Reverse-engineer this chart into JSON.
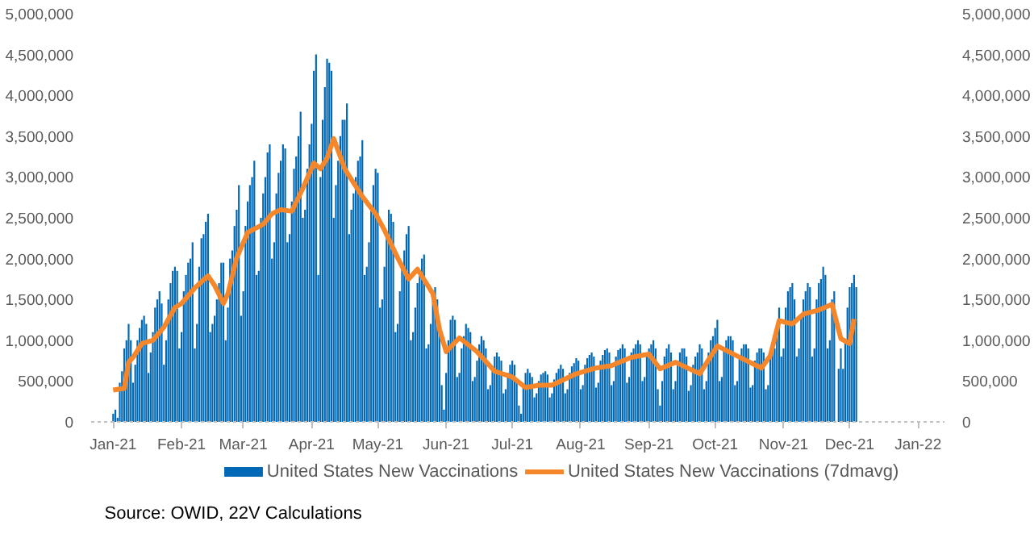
{
  "chart_data": {
    "type": "bar",
    "x": [
      "2021-01-01",
      "2021-01-02",
      "2021-01-03",
      "2021-01-04",
      "2021-01-05",
      "2021-01-06",
      "2021-01-07",
      "2021-01-08",
      "2021-01-09",
      "2021-01-10",
      "2021-01-11",
      "2021-01-12",
      "2021-01-13",
      "2021-01-14",
      "2021-01-15",
      "2021-01-16",
      "2021-01-17",
      "2021-01-18",
      "2021-01-19",
      "2021-01-20",
      "2021-01-21",
      "2021-01-22",
      "2021-01-23",
      "2021-01-24",
      "2021-01-25",
      "2021-01-26",
      "2021-01-27",
      "2021-01-28",
      "2021-01-29",
      "2021-01-30",
      "2021-01-31",
      "2021-02-01",
      "2021-02-02",
      "2021-02-03",
      "2021-02-04",
      "2021-02-05",
      "2021-02-06",
      "2021-02-07",
      "2021-02-08",
      "2021-02-09",
      "2021-02-10",
      "2021-02-11",
      "2021-02-12",
      "2021-02-13",
      "2021-02-14",
      "2021-02-15",
      "2021-02-16",
      "2021-02-17",
      "2021-02-18",
      "2021-02-19",
      "2021-02-20",
      "2021-02-21",
      "2021-02-22",
      "2021-02-23",
      "2021-02-24",
      "2021-02-25",
      "2021-02-26",
      "2021-02-27",
      "2021-02-28",
      "2021-03-01",
      "2021-03-02",
      "2021-03-03",
      "2021-03-04",
      "2021-03-05",
      "2021-03-06",
      "2021-03-07",
      "2021-03-08",
      "2021-03-09",
      "2021-03-10",
      "2021-03-11",
      "2021-03-12",
      "2021-03-13",
      "2021-03-14",
      "2021-03-15",
      "2021-03-16",
      "2021-03-17",
      "2021-03-18",
      "2021-03-19",
      "2021-03-20",
      "2021-03-21",
      "2021-03-22",
      "2021-03-23",
      "2021-03-24",
      "2021-03-25",
      "2021-03-26",
      "2021-03-27",
      "2021-03-28",
      "2021-03-29",
      "2021-03-30",
      "2021-03-31",
      "2021-04-01",
      "2021-04-02",
      "2021-04-03",
      "2021-04-04",
      "2021-04-05",
      "2021-04-06",
      "2021-04-07",
      "2021-04-08",
      "2021-04-09",
      "2021-04-10",
      "2021-04-11",
      "2021-04-12",
      "2021-04-13",
      "2021-04-14",
      "2021-04-15",
      "2021-04-16",
      "2021-04-17",
      "2021-04-18",
      "2021-04-19",
      "2021-04-20",
      "2021-04-21",
      "2021-04-22",
      "2021-04-23",
      "2021-04-24",
      "2021-04-25",
      "2021-04-26",
      "2021-04-27",
      "2021-04-28",
      "2021-04-29",
      "2021-04-30",
      "2021-05-01",
      "2021-05-02",
      "2021-05-03",
      "2021-05-04",
      "2021-05-05",
      "2021-05-06",
      "2021-05-07",
      "2021-05-08",
      "2021-05-09",
      "2021-05-10",
      "2021-05-11",
      "2021-05-12",
      "2021-05-13",
      "2021-05-14",
      "2021-05-15",
      "2021-05-16",
      "2021-05-17",
      "2021-05-18",
      "2021-05-19",
      "2021-05-20",
      "2021-05-21",
      "2021-05-22",
      "2021-05-23",
      "2021-05-24",
      "2021-05-25",
      "2021-05-26",
      "2021-05-27",
      "2021-05-28",
      "2021-05-29",
      "2021-05-30",
      "2021-05-31",
      "2021-06-01",
      "2021-06-02",
      "2021-06-03",
      "2021-06-04",
      "2021-06-05",
      "2021-06-06",
      "2021-06-07",
      "2021-06-08",
      "2021-06-09",
      "2021-06-10",
      "2021-06-11",
      "2021-06-12",
      "2021-06-13",
      "2021-06-14",
      "2021-06-15",
      "2021-06-16",
      "2021-06-17",
      "2021-06-18",
      "2021-06-19",
      "2021-06-20",
      "2021-06-21",
      "2021-06-22",
      "2021-06-23",
      "2021-06-24",
      "2021-06-25",
      "2021-06-26",
      "2021-06-27",
      "2021-06-28",
      "2021-06-29",
      "2021-06-30",
      "2021-07-01",
      "2021-07-02",
      "2021-07-03",
      "2021-07-04",
      "2021-07-05",
      "2021-07-06",
      "2021-07-07",
      "2021-07-08",
      "2021-07-09",
      "2021-07-10",
      "2021-07-11",
      "2021-07-12",
      "2021-07-13",
      "2021-07-14",
      "2021-07-15",
      "2021-07-16",
      "2021-07-17",
      "2021-07-18",
      "2021-07-19",
      "2021-07-20",
      "2021-07-21",
      "2021-07-22",
      "2021-07-23",
      "2021-07-24",
      "2021-07-25",
      "2021-07-26",
      "2021-07-27",
      "2021-07-28",
      "2021-07-29",
      "2021-07-30",
      "2021-07-31",
      "2021-08-01",
      "2021-08-02",
      "2021-08-03",
      "2021-08-04",
      "2021-08-05",
      "2021-08-06",
      "2021-08-07",
      "2021-08-08",
      "2021-08-09",
      "2021-08-10",
      "2021-08-11",
      "2021-08-12",
      "2021-08-13",
      "2021-08-14",
      "2021-08-15",
      "2021-08-16",
      "2021-08-17",
      "2021-08-18",
      "2021-08-19",
      "2021-08-20",
      "2021-08-21",
      "2021-08-22",
      "2021-08-23",
      "2021-08-24",
      "2021-08-25",
      "2021-08-26",
      "2021-08-27",
      "2021-08-28",
      "2021-08-29",
      "2021-08-30",
      "2021-08-31",
      "2021-09-01",
      "2021-09-02",
      "2021-09-03",
      "2021-09-04",
      "2021-09-05",
      "2021-09-06",
      "2021-09-07",
      "2021-09-08",
      "2021-09-09",
      "2021-09-10",
      "2021-09-11",
      "2021-09-12",
      "2021-09-13",
      "2021-09-14",
      "2021-09-15",
      "2021-09-16",
      "2021-09-17",
      "2021-09-18",
      "2021-09-19",
      "2021-09-20",
      "2021-09-21",
      "2021-09-22",
      "2021-09-23",
      "2021-09-24",
      "2021-09-25",
      "2021-09-26",
      "2021-09-27",
      "2021-09-28",
      "2021-09-29",
      "2021-09-30",
      "2021-10-01",
      "2021-10-02",
      "2021-10-03",
      "2021-10-04",
      "2021-10-05",
      "2021-10-06",
      "2021-10-07",
      "2021-10-08",
      "2021-10-09",
      "2021-10-10",
      "2021-10-11",
      "2021-10-12",
      "2021-10-13",
      "2021-10-14",
      "2021-10-15",
      "2021-10-16",
      "2021-10-17",
      "2021-10-18",
      "2021-10-19",
      "2021-10-20",
      "2021-10-21",
      "2021-10-22",
      "2021-10-23",
      "2021-10-24",
      "2021-10-25",
      "2021-10-26",
      "2021-10-27",
      "2021-10-28",
      "2021-10-29",
      "2021-10-30",
      "2021-10-31",
      "2021-11-01",
      "2021-11-02",
      "2021-11-03",
      "2021-11-04",
      "2021-11-05",
      "2021-11-06",
      "2021-11-07",
      "2021-11-08",
      "2021-11-09",
      "2021-11-10",
      "2021-11-11",
      "2021-11-12",
      "2021-11-13",
      "2021-11-14",
      "2021-11-15",
      "2021-11-16",
      "2021-11-17",
      "2021-11-18",
      "2021-11-19",
      "2021-11-20",
      "2021-11-21",
      "2021-11-22",
      "2021-11-23",
      "2021-11-24",
      "2021-11-25",
      "2021-11-26",
      "2021-11-27",
      "2021-11-28",
      "2021-11-29",
      "2021-11-30",
      "2021-12-01",
      "2021-12-02",
      "2021-12-03",
      "2021-12-04"
    ],
    "xlim": [
      "2020-12-22",
      "2022-01-13"
    ],
    "xticks": [
      {
        "value": "2021-01-01",
        "label": "Jan-21"
      },
      {
        "value": "2021-02-01",
        "label": "Feb-21"
      },
      {
        "value": "2021-03-01",
        "label": "Mar-21"
      },
      {
        "value": "2021-04-01",
        "label": "Apr-21"
      },
      {
        "value": "2021-05-01",
        "label": "May-21"
      },
      {
        "value": "2021-06-01",
        "label": "Jun-21"
      },
      {
        "value": "2021-07-01",
        "label": "Jul-21"
      },
      {
        "value": "2021-08-01",
        "label": "Aug-21"
      },
      {
        "value": "2021-09-01",
        "label": "Sep-21"
      },
      {
        "value": "2021-10-01",
        "label": "Oct-21"
      },
      {
        "value": "2021-11-01",
        "label": "Nov-21"
      },
      {
        "value": "2021-12-01",
        "label": "Dec-21"
      },
      {
        "value": "2022-01-01",
        "label": "Jan-22"
      }
    ],
    "ylim": [
      0,
      5000000
    ],
    "yticks": [
      0,
      {
        "value": 500000,
        "label": "500,000"
      },
      {
        "value": 1000000,
        "label": "1,000,000"
      },
      {
        "value": 1500000,
        "label": "1,500,000"
      },
      {
        "value": 2000000,
        "label": "2,000,000"
      },
      {
        "value": 2500000,
        "label": "2,500,000"
      },
      {
        "value": 3000000,
        "label": "3,000,000"
      },
      {
        "value": 3500000,
        "label": "3,500,000"
      },
      {
        "value": 4000000,
        "label": "4,000,000"
      },
      {
        "value": 4500000,
        "label": "4,500,000"
      },
      {
        "value": 5000000,
        "label": "5,000,000"
      }
    ],
    "y2lim": [
      0,
      5000000
    ],
    "y2ticks": [
      0,
      {
        "value": 500000,
        "label": "500,000"
      },
      {
        "value": 1000000,
        "label": "1,000,000"
      },
      {
        "value": 1500000,
        "label": "1,500,000"
      },
      {
        "value": 2000000,
        "label": "2,000,000"
      },
      {
        "value": 2500000,
        "label": "2,500,000"
      },
      {
        "value": 3000000,
        "label": "3,000,000"
      },
      {
        "value": 3500000,
        "label": "3,500,000"
      },
      {
        "value": 4000000,
        "label": "4,000,000"
      },
      {
        "value": 4500000,
        "label": "4,500,000"
      },
      {
        "value": 5000000,
        "label": "5,000,000"
      }
    ],
    "grid": false,
    "legend": "bottom",
    "annotations": [
      "Source:  OWID, 22V Calculations"
    ],
    "series": [
      {
        "name": "United States New Vaccinations",
        "color": "#0068b4",
        "values": [
          100000,
          150000,
          50000,
          480000,
          620000,
          900000,
          1000000,
          1200000,
          1000000,
          480000,
          700000,
          1000000,
          1150000,
          1250000,
          1300000,
          1200000,
          600000,
          850000,
          1100000,
          1400000,
          1500000,
          1600000,
          1450000,
          700000,
          1000000,
          1500000,
          1700000,
          1850000,
          1900000,
          1850000,
          900000,
          1100000,
          1600000,
          1800000,
          1950000,
          2000000,
          2200000,
          900000,
          1200000,
          1900000,
          2250000,
          2300000,
          2450000,
          2550000,
          1100000,
          1200000,
          1300000,
          1500000,
          1700000,
          1950000,
          1950000,
          1000000,
          1400000,
          2000000,
          2100000,
          2400000,
          2600000,
          2900000,
          1300000,
          1600000,
          2400000,
          2700000,
          2900000,
          3000000,
          3200000,
          1800000,
          1850000,
          2500000,
          2800000,
          3000000,
          3300000,
          3400000,
          2000000,
          2200000,
          2800000,
          3050000,
          3200000,
          3400000,
          3350000,
          2200000,
          2300000,
          2700000,
          3100000,
          3250000,
          3500000,
          3800000,
          2500000,
          2600000,
          3100000,
          3400000,
          3650000,
          4300000,
          4500000,
          1800000,
          3000000,
          3700000,
          4100000,
          4450000,
          4400000,
          4300000,
          2500000,
          2900000,
          3200000,
          3500000,
          3700000,
          3700000,
          3900000,
          2300000,
          2600000,
          2800000,
          3000000,
          3200000,
          3250000,
          3450000,
          1800000,
          1900000,
          2200000,
          2600000,
          2900000,
          3100000,
          3050000,
          1400000,
          1500000,
          1900000,
          2300000,
          2600000,
          2550000,
          2450000,
          1100000,
          1200000,
          1600000,
          1900000,
          2100000,
          2300000,
          2400000,
          1000000,
          1100000,
          1400000,
          1700000,
          1800000,
          2000000,
          2050000,
          900000,
          950000,
          1200000,
          1550000,
          1650000,
          1500000,
          1200000,
          450000,
          150000,
          600000,
          1000000,
          1250000,
          1300000,
          1250000,
          550000,
          600000,
          900000,
          1050000,
          1200000,
          1150000,
          1100000,
          500000,
          550000,
          750000,
          950000,
          1050000,
          1000000,
          900000,
          400000,
          450000,
          650000,
          800000,
          850000,
          800000,
          750000,
          350000,
          400000,
          600000,
          700000,
          750000,
          700000,
          500000,
          200000,
          100000,
          450000,
          600000,
          650000,
          600000,
          550000,
          300000,
          350000,
          500000,
          580000,
          600000,
          620000,
          580000,
          300000,
          350000,
          520000,
          600000,
          650000,
          700000,
          650000,
          350000,
          400000,
          600000,
          680000,
          720000,
          780000,
          750000,
          400000,
          450000,
          700000,
          780000,
          820000,
          850000,
          800000,
          420000,
          480000,
          750000,
          820000,
          880000,
          900000,
          850000,
          450000,
          500000,
          800000,
          880000,
          900000,
          950000,
          900000,
          480000,
          550000,
          850000,
          900000,
          950000,
          1000000,
          950000,
          500000,
          550000,
          850000,
          900000,
          950000,
          1000000,
          900000,
          400000,
          200000,
          500000,
          800000,
          900000,
          950000,
          850000,
          400000,
          500000,
          750000,
          850000,
          900000,
          900000,
          800000,
          380000,
          450000,
          700000,
          800000,
          850000,
          950000,
          900000,
          400000,
          500000,
          850000,
          1000000,
          1050000,
          1150000,
          1250000,
          500000,
          550000,
          900000,
          1000000,
          1050000,
          1050000,
          1000000,
          450000,
          500000,
          800000,
          900000,
          950000,
          950000,
          900000,
          420000,
          450000,
          750000,
          850000,
          900000,
          900000,
          850000,
          400000,
          450000,
          800000,
          850000,
          900000,
          1100000,
          1400000,
          800000,
          900000,
          1400000,
          1600000,
          1650000,
          1700000,
          1500000,
          800000,
          900000,
          1300000,
          1500000,
          1600000,
          1700000,
          1650000,
          800000,
          900000,
          1500000,
          1700000,
          1750000,
          1900000,
          1800000,
          900000,
          1000000,
          1500000,
          1600000,
          0,
          650000,
          900000,
          650000,
          1000000,
          1400000,
          1650000,
          1700000,
          1800000,
          1650000
        ]
      },
      {
        "name": "United States New Vaccinations (7dmavg)",
        "type": "line",
        "color": "#f5862a",
        "x": [
          "2021-01-01",
          "2021-01-06",
          "2021-01-08",
          "2021-01-10",
          "2021-01-14",
          "2021-01-19",
          "2021-01-24",
          "2021-01-29",
          "2021-02-01",
          "2021-02-07",
          "2021-02-13",
          "2021-02-16",
          "2021-02-20",
          "2021-02-22",
          "2021-02-26",
          "2021-03-03",
          "2021-03-10",
          "2021-03-14",
          "2021-03-18",
          "2021-03-23",
          "2021-03-28",
          "2021-04-02",
          "2021-04-05",
          "2021-04-08",
          "2021-04-11",
          "2021-04-16",
          "2021-04-24",
          "2021-04-30",
          "2021-05-04",
          "2021-05-10",
          "2021-05-15",
          "2021-05-19",
          "2021-05-26",
          "2021-05-29",
          "2021-06-01",
          "2021-06-07",
          "2021-06-15",
          "2021-06-23",
          "2021-07-01",
          "2021-07-07",
          "2021-07-13",
          "2021-07-19",
          "2021-07-30",
          "2021-08-08",
          "2021-08-15",
          "2021-08-24",
          "2021-09-01",
          "2021-09-06",
          "2021-09-13",
          "2021-09-24",
          "2021-10-02",
          "2021-10-13",
          "2021-10-22",
          "2021-10-26",
          "2021-10-30",
          "2021-11-05",
          "2021-11-10",
          "2021-11-17",
          "2021-11-23",
          "2021-11-27",
          "2021-12-01",
          "2021-12-03"
        ],
        "values": [
          390000,
          410000,
          730000,
          790000,
          960000,
          1000000,
          1160000,
          1400000,
          1450000,
          1640000,
          1790000,
          1670000,
          1450000,
          1570000,
          2010000,
          2320000,
          2420000,
          2550000,
          2600000,
          2580000,
          2860000,
          3170000,
          3100000,
          3230000,
          3470000,
          3100000,
          2760000,
          2550000,
          2350000,
          2010000,
          1750000,
          1870000,
          1570000,
          1130000,
          860000,
          1030000,
          860000,
          620000,
          550000,
          420000,
          450000,
          450000,
          590000,
          660000,
          690000,
          790000,
          830000,
          650000,
          730000,
          590000,
          930000,
          780000,
          660000,
          810000,
          1240000,
          1200000,
          1320000,
          1370000,
          1440000,
          1020000,
          960000,
          1260000
        ]
      }
    ]
  }
}
